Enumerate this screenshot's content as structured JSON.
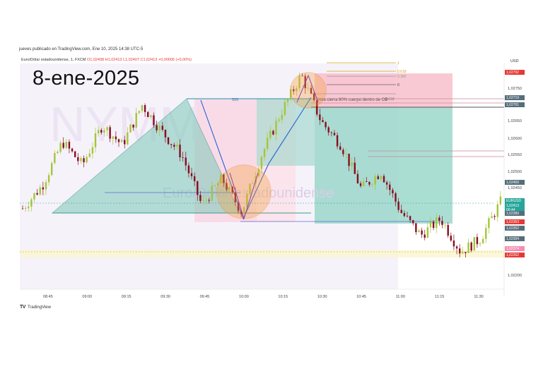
{
  "header": {
    "published": "jueves publicado en TradingView.com, Ene 10, 2025 14:38 UTC-5",
    "symbol_line": "Euro/Dólar estadounidense, 1, FXCM",
    "ohlc": "O1,02408 H1,02413 L1,02407 C1,02413 +0,00005 (+0,00%)",
    "currency": "USD"
  },
  "date_title": "8-ene-2025",
  "footer": {
    "logo": "TV",
    "brand": "TradingView"
  },
  "annotations": {
    "note": "Vela cierra 80% cuerpo dentro de OB",
    "level_555": "555",
    "fib_1": "1",
    "fib_0618": "0.618",
    "fib_0382": "0.382",
    "fib_0": "0",
    "fib_0618b": "0.618",
    "watermark": "Euro/Dólar estadounidense"
  },
  "chart_data": {
    "type": "candlestick",
    "symbol": "EURUSD",
    "timeframe": "1",
    "x_ticks": [
      "08:45",
      "09:00",
      "09:15",
      "09:30",
      "09:45",
      "10:00",
      "10:15",
      "10:30",
      "10:45",
      "11:00",
      "11:15",
      "11:30"
    ],
    "y_ticks": [
      "1,02750",
      "1,02650",
      "1,02600",
      "1,02550",
      "1,02500",
      "1,02450",
      "1,02200"
    ],
    "price_tags": [
      {
        "label": "1,02792",
        "color": "#e53935"
      },
      {
        "label": "1,02719",
        "color": "#546e7a"
      },
      {
        "label": "1,02701",
        "color": "#546e7a"
      },
      {
        "label": "1,02469",
        "color": "#546e7a"
      },
      {
        "label": "EURUSD",
        "color": "#26a69a"
      },
      {
        "label": "1,02413",
        "color": "#26a69a"
      },
      {
        "label": "00:44",
        "color": "#26a69a"
      },
      {
        "label": "1,02389",
        "color": "#546e7a"
      },
      {
        "label": "1,02353",
        "color": "#e53935"
      },
      {
        "label": "1,02352",
        "color": "#546e7a"
      },
      {
        "label": "1,02304",
        "color": "#546e7a"
      },
      {
        "label": "1,02274",
        "color": "#f48fb1"
      },
      {
        "label": "1,02262",
        "color": "#e53935"
      }
    ],
    "y_range": [
      1.0217,
      1.0282
    ],
    "series_close_approx": [
      1.0239,
      1.0246,
      1.0259,
      1.0252,
      1.0264,
      1.0258,
      1.027,
      1.0262,
      1.0255,
      1.024,
      1.0248,
      1.0238,
      1.0255,
      1.0268,
      1.0279,
      1.0265,
      1.0258,
      1.0245,
      1.025,
      1.0238,
      1.0231,
      1.0236,
      1.0226,
      1.023,
      1.0241
    ],
    "colors": {
      "up": "#a4c639",
      "down": "#880e1f",
      "teal": "#26a69a",
      "red_zone": "#f8bbd0"
    }
  }
}
